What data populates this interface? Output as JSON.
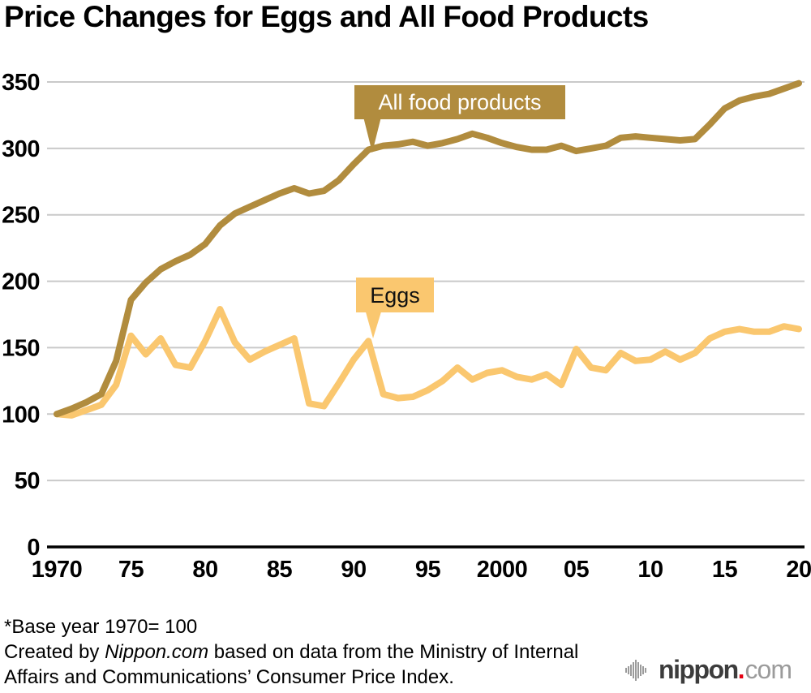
{
  "title": "Price Changes for Eggs and All Food Products",
  "chart_data": {
    "type": "line",
    "x": [
      1970,
      1971,
      1972,
      1973,
      1974,
      1975,
      1976,
      1977,
      1978,
      1979,
      1980,
      1981,
      1982,
      1983,
      1984,
      1985,
      1986,
      1987,
      1988,
      1989,
      1990,
      1991,
      1992,
      1993,
      1994,
      1995,
      1996,
      1997,
      1998,
      1999,
      2000,
      2001,
      2002,
      2003,
      2004,
      2005,
      2006,
      2007,
      2008,
      2009,
      2010,
      2011,
      2012,
      2013,
      2014,
      2015,
      2016,
      2017,
      2018,
      2019,
      2020
    ],
    "series": [
      {
        "name": "All food products",
        "color": "#B18C3E",
        "values": [
          100,
          104,
          109,
          115,
          140,
          186,
          199,
          209,
          215,
          220,
          228,
          242,
          251,
          256,
          261,
          266,
          270,
          266,
          268,
          276,
          288,
          299,
          302,
          303,
          305,
          302,
          304,
          307,
          311,
          308,
          304,
          301,
          299,
          299,
          302,
          298,
          300,
          302,
          308,
          309,
          308,
          307,
          306,
          307,
          318,
          330,
          336,
          339,
          341,
          345,
          349
        ]
      },
      {
        "name": "Eggs",
        "color": "#FAC76F",
        "values": [
          100,
          99,
          103,
          107,
          122,
          159,
          145,
          157,
          137,
          135,
          155,
          179,
          154,
          141,
          147,
          152,
          157,
          108,
          106,
          123,
          141,
          155,
          115,
          112,
          113,
          118,
          125,
          135,
          126,
          131,
          133,
          128,
          126,
          130,
          122,
          149,
          135,
          133,
          146,
          140,
          141,
          147,
          141,
          146,
          157,
          162,
          164,
          162,
          162,
          166,
          164
        ]
      }
    ],
    "xlabel": "",
    "ylabel": "",
    "xlim": [
      1970,
      2020
    ],
    "ylim": [
      0,
      350
    ],
    "y_ticks": [
      0,
      50,
      100,
      150,
      200,
      250,
      300,
      350
    ],
    "x_tick_years": [
      1970,
      1975,
      1980,
      1985,
      1990,
      1995,
      2000,
      2005,
      2010,
      2015,
      2020
    ],
    "x_tick_labels": [
      "1970",
      "75",
      "80",
      "85",
      "90",
      "95",
      "2000",
      "05",
      "10",
      "15",
      "20"
    ],
    "grid": "horizontal",
    "gridline_color": "#C9C9C9",
    "axis_color": "#000000",
    "annotations": [
      {
        "label": "All food products",
        "series": "All food products",
        "target_year": 1991,
        "text_color": "#ffffff"
      },
      {
        "label": "Eggs",
        "series": "Eggs",
        "target_year": 1991,
        "text_color": "#111111"
      }
    ]
  },
  "footnote": {
    "line1": "*Base year 1970= 100",
    "line2_prefix": "Created by ",
    "line2_brand": "Nippon.com",
    "line2_suffix": " based on data from the Ministry of Internal",
    "line3": "Affairs and Communications’ Consumer Price Index."
  },
  "logo": {
    "name": "nippon",
    "dot": ".",
    "tld": "com",
    "name_color": "#3c3c3c",
    "dot_color": "#e60012",
    "tld_color": "#9b9b9b"
  }
}
